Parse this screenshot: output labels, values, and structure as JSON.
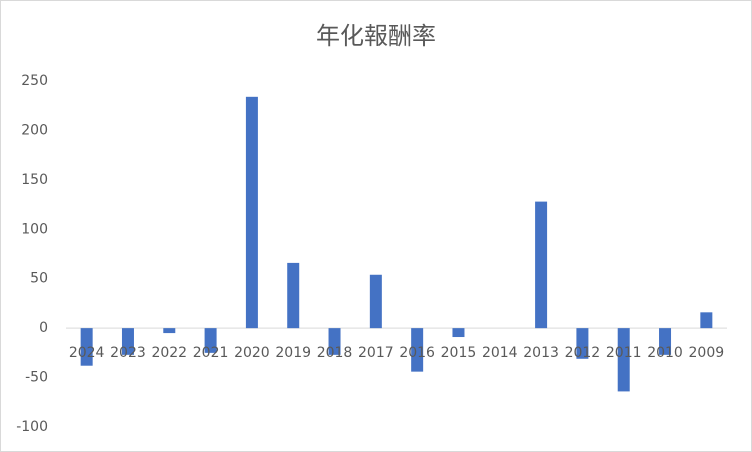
{
  "chart_data": {
    "type": "bar",
    "title": "年化報酬率",
    "categories": [
      "2024",
      "2023",
      "2022",
      "2021",
      "2020",
      "2019",
      "2018",
      "2017",
      "2016",
      "2015",
      "2014",
      "2013",
      "2012",
      "2011",
      "2010",
      "2009"
    ],
    "values": [
      -38,
      -27,
      -5,
      -25,
      234,
      66,
      -27,
      54,
      -44,
      -9,
      0,
      128,
      -31,
      -64,
      -27,
      16
    ],
    "color": "#4472c4",
    "ylim": [
      -100,
      250
    ],
    "yticks": [
      -100,
      -50,
      0,
      50,
      100,
      150,
      200,
      250
    ],
    "grid": false
  }
}
